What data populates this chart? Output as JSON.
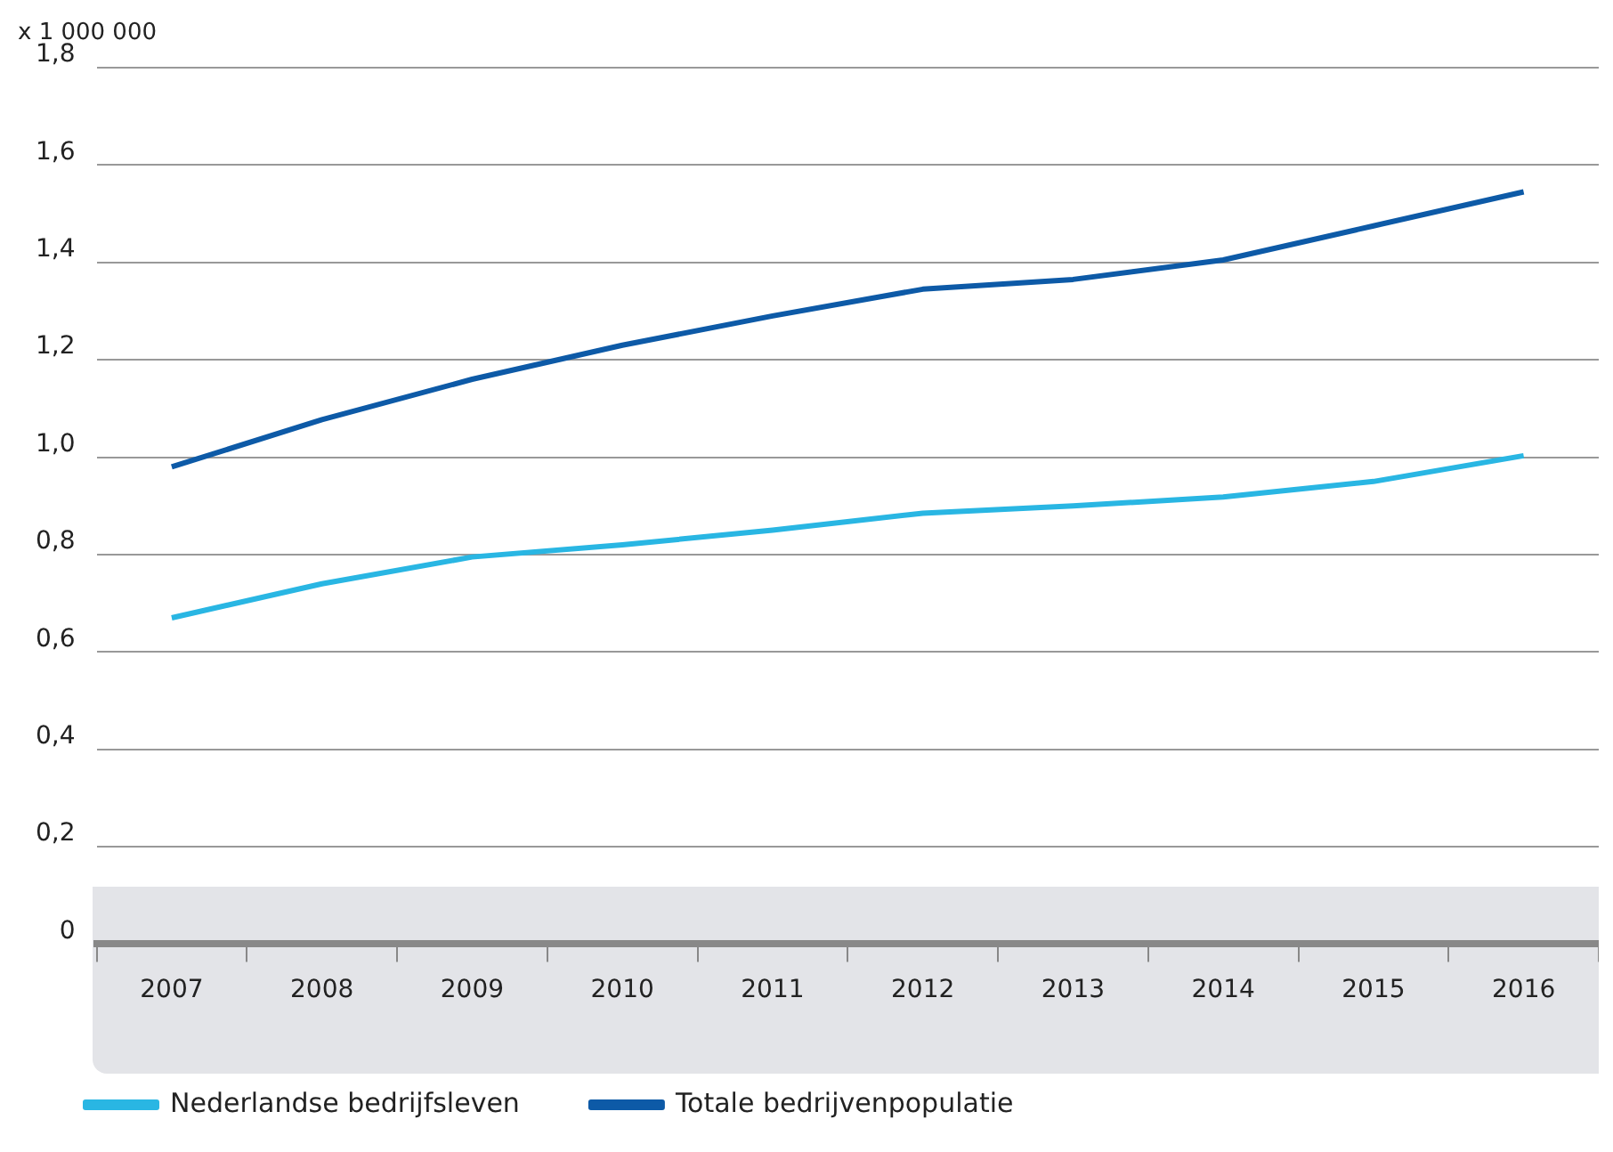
{
  "chart_data": {
    "type": "line",
    "ylabel": "x 1 000 000",
    "categories": [
      "2007",
      "2008",
      "2009",
      "2010",
      "2011",
      "2012",
      "2013",
      "2014",
      "2015",
      "2016"
    ],
    "series": [
      {
        "name": "Nederlandse bedrijfsleven",
        "color": "#29b6e3",
        "values": [
          0.67,
          0.74,
          0.795,
          0.82,
          0.85,
          0.885,
          0.9,
          0.918,
          0.95,
          1.003
        ]
      },
      {
        "name": "Totale bedrijvenpopulatie",
        "color": "#0d5aa7",
        "values": [
          0.98,
          1.077,
          1.16,
          1.23,
          1.29,
          1.345,
          1.365,
          1.405,
          1.475,
          1.545
        ]
      }
    ],
    "ylim": [
      0,
      1.8
    ],
    "yticks": [
      0,
      {
        "value": 0.2,
        "label": "0,2"
      },
      {
        "value": 0.4,
        "label": "0,4"
      },
      {
        "value": 0.6,
        "label": "0,6"
      },
      {
        "value": 0.8,
        "label": "0,8"
      },
      {
        "value": 1,
        "label": "1,0"
      },
      {
        "value": 1.2,
        "label": "1,2"
      },
      {
        "value": 1.4,
        "label": "1,4"
      },
      {
        "value": 1.6,
        "label": "1,6"
      },
      {
        "value": 1.8,
        "label": "1,8"
      }
    ],
    "grid": "y",
    "legend": "bottom left",
    "marker": "none",
    "line_style": "solid"
  }
}
